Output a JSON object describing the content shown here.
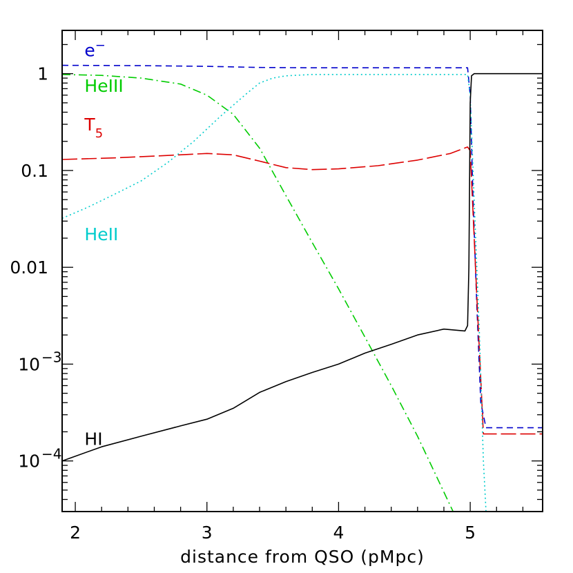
{
  "chart_data": {
    "type": "line",
    "title": "",
    "xlabel": "distance from QSO (pMpc)",
    "ylabel": "",
    "xlim": [
      1.9,
      5.55
    ],
    "ylim": [
      3e-05,
      2.8
    ],
    "yscale": "log",
    "grid": false,
    "legend": "none",
    "x_ticks": [
      {
        "value": 2,
        "label": "2"
      },
      {
        "value": 3,
        "label": "3"
      },
      {
        "value": 4,
        "label": "4"
      },
      {
        "value": 5,
        "label": "5"
      }
    ],
    "y_ticks": [
      {
        "value": 0.0001,
        "base": "10",
        "exp": "−4"
      },
      {
        "value": 0.001,
        "base": "10",
        "exp": "−3"
      },
      {
        "value": 0.01,
        "base": "0.01",
        "exp": ""
      },
      {
        "value": 0.1,
        "base": "0.1",
        "exp": ""
      },
      {
        "value": 1,
        "base": "1",
        "exp": ""
      }
    ],
    "series": [
      {
        "name": "e⁻",
        "label": {
          "main": "e",
          "sup": "−",
          "sub": "",
          "x": 2.07,
          "y": 1.75
        },
        "color": "#0000cc",
        "dash": "9,6",
        "x": [
          1.9,
          2.5,
          3.0,
          3.4,
          3.8,
          4.2,
          4.6,
          4.98,
          5.0,
          5.02,
          5.05,
          5.08,
          5.12,
          5.55
        ],
        "y": [
          1.22,
          1.21,
          1.19,
          1.16,
          1.15,
          1.15,
          1.15,
          1.15,
          0.6,
          0.06,
          0.004,
          0.0004,
          0.00022,
          0.00022
        ]
      },
      {
        "name": "HeIII",
        "label": {
          "main": "HeIII",
          "sup": "",
          "sub": "",
          "x": 2.07,
          "y": 0.75
        },
        "color": "#00cc00",
        "dash": "12,5,2,5",
        "x": [
          1.9,
          2.2,
          2.5,
          2.8,
          3.0,
          3.2,
          3.4,
          3.6,
          3.8,
          4.0,
          4.2,
          4.4,
          4.6,
          4.87
        ],
        "y": [
          0.98,
          0.96,
          0.9,
          0.78,
          0.6,
          0.38,
          0.17,
          0.055,
          0.018,
          0.006,
          0.0019,
          0.0006,
          0.00018,
          3e-05
        ]
      },
      {
        "name": "T5",
        "label": {
          "main": "T",
          "sup": "",
          "sub": "5",
          "x": 2.07,
          "y": 0.3
        },
        "color": "#dd0000",
        "dash": "22,6",
        "x": [
          1.9,
          2.3,
          2.7,
          3.0,
          3.2,
          3.4,
          3.6,
          3.8,
          4.0,
          4.3,
          4.6,
          4.85,
          4.98,
          5.0,
          5.05,
          5.1,
          5.55
        ],
        "y": [
          0.13,
          0.135,
          0.143,
          0.15,
          0.145,
          0.125,
          0.107,
          0.102,
          0.104,
          0.112,
          0.128,
          0.15,
          0.175,
          0.16,
          0.005,
          0.00019,
          0.00019
        ]
      },
      {
        "name": "HeII",
        "label": {
          "main": "HeII",
          "sup": "",
          "sub": "",
          "x": 2.07,
          "y": 0.022
        },
        "color": "#00cccc",
        "dash": "2,4",
        "x": [
          1.9,
          2.1,
          2.3,
          2.5,
          2.7,
          2.9,
          3.1,
          3.3,
          3.4,
          3.5,
          3.6,
          3.8,
          4.2,
          4.6,
          4.98,
          5.0,
          5.03,
          5.07,
          5.1,
          5.12
        ],
        "y": [
          0.032,
          0.042,
          0.057,
          0.078,
          0.12,
          0.2,
          0.36,
          0.62,
          0.8,
          0.9,
          0.95,
          0.98,
          0.98,
          0.98,
          0.98,
          0.6,
          0.05,
          0.002,
          0.0001,
          3e-05
        ]
      },
      {
        "name": "HI",
        "label": {
          "main": "HI",
          "sup": "",
          "sub": "",
          "x": 2.07,
          "y": 0.00017
        },
        "color": "#000000",
        "dash": "",
        "x": [
          1.9,
          2.2,
          2.5,
          2.8,
          3.0,
          3.2,
          3.4,
          3.6,
          3.8,
          4.0,
          4.2,
          4.4,
          4.6,
          4.8,
          4.96,
          4.98,
          4.99,
          5.0,
          5.01,
          5.03,
          5.1,
          5.3,
          5.55
        ],
        "y": [
          0.0001,
          0.00014,
          0.00018,
          0.00023,
          0.00027,
          0.00035,
          0.00051,
          0.00066,
          0.00082,
          0.001,
          0.0013,
          0.0016,
          0.002,
          0.0023,
          0.0022,
          0.0025,
          0.01,
          0.5,
          0.95,
          1.0,
          1.0,
          1.0,
          1.0
        ]
      }
    ]
  }
}
